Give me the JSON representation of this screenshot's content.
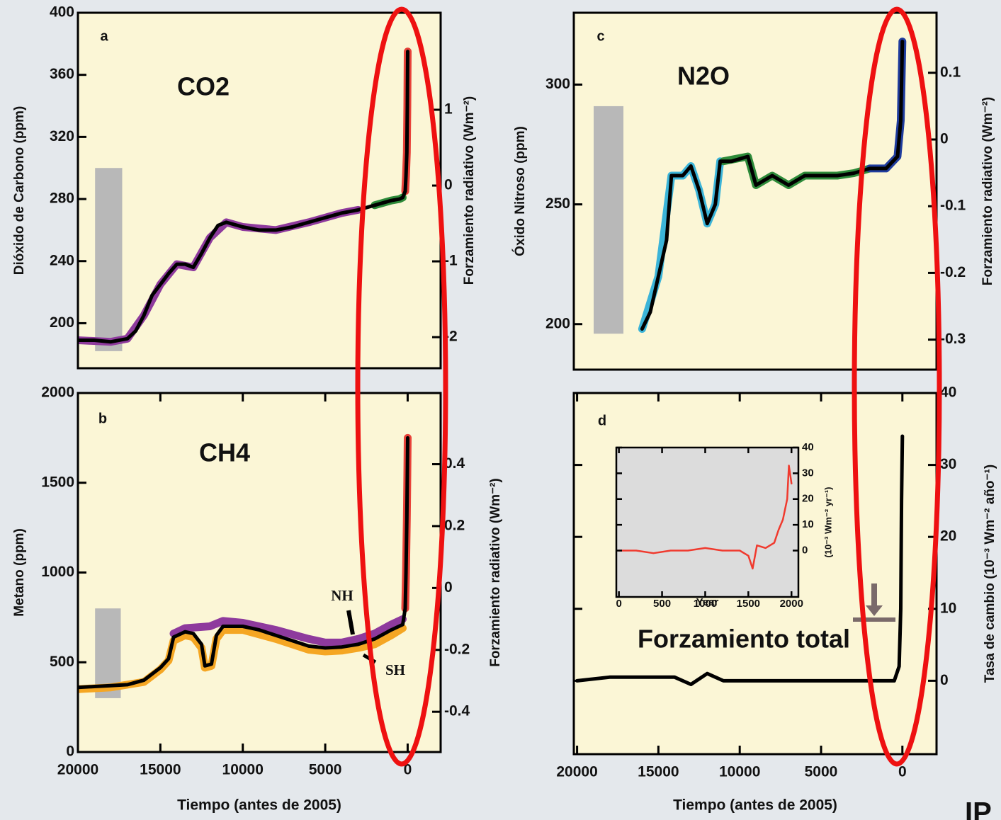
{
  "chart_data": [
    {
      "type": "line",
      "panel_label": "a",
      "title": "CO2",
      "ylabel": "Dióxido de Carbono (ppm)",
      "y2label": "Forzamiento radiativo (Wm⁻²)",
      "xlim": [
        20000,
        -2000
      ],
      "ylim": [
        171,
        400
      ],
      "yticks": [
        200,
        240,
        280,
        320,
        360,
        400
      ],
      "y2lim": [
        -2.41,
        2.28
      ],
      "y2ticks": [
        -2,
        -1,
        0,
        1
      ],
      "shaded_range": {
        "x": [
          18960,
          17315
        ],
        "y": [
          182,
          300
        ]
      },
      "series": [
        {
          "color": "#8e3a9d",
          "x": [
            20000,
            18000,
            17000,
            16000,
            15000,
            14000,
            13000,
            12000,
            11000,
            10000,
            8000,
            6000,
            4000,
            3000
          ],
          "values": [
            189,
            188,
            190,
            205,
            225,
            238,
            236,
            255,
            265,
            262,
            260,
            265,
            271,
            273
          ]
        },
        {
          "color": "#2e8b3a",
          "x": [
            2000,
            1000,
            500,
            300
          ],
          "values": [
            276,
            279,
            280,
            281
          ]
        },
        {
          "color": "#e8423a",
          "x": [
            150,
            100,
            50,
            20,
            0
          ],
          "values": [
            285,
            295,
            310,
            340,
            375
          ]
        },
        {
          "color": "#000000",
          "x": [
            20000,
            19000,
            18000,
            17000,
            16500,
            16000,
            15500,
            15000,
            14500,
            14000,
            13500,
            13000,
            12500,
            12000,
            11500,
            11000,
            10000,
            9000,
            8000,
            7000,
            6000,
            5000,
            4000,
            3000,
            2000,
            1000,
            500,
            300,
            150,
            100,
            50,
            20,
            0
          ],
          "values": [
            189,
            189,
            188,
            190,
            195,
            205,
            218,
            225,
            232,
            238,
            238,
            236,
            245,
            255,
            263,
            265,
            262,
            260,
            260,
            262,
            265,
            268,
            271,
            273,
            276,
            279,
            280,
            281,
            285,
            295,
            310,
            340,
            375
          ]
        }
      ]
    },
    {
      "type": "line",
      "panel_label": "b",
      "title": "CH4",
      "ylabel": "Metano (ppm)",
      "y2label": "Forzamiento radiativo (Wm⁻²)",
      "xlabel": "Tiempo (antes de 2005)",
      "xlim": [
        20000,
        -2000
      ],
      "xticks": [
        20000,
        15000,
        10000,
        5000,
        0
      ],
      "ylim": [
        0,
        2000
      ],
      "yticks": [
        0,
        500,
        1000,
        1500,
        2000
      ],
      "y2lim": [
        -0.53,
        0.63
      ],
      "y2ticks": [
        -0.4,
        -0.2,
        0,
        0.2,
        0.4
      ],
      "annotations": [
        "NH",
        "SH"
      ],
      "shaded_range": {
        "x": [
          18960,
          17400
        ],
        "y": [
          300,
          800
        ]
      },
      "series": [
        {
          "color": "#f5a623",
          "x": [
            20000,
            18000,
            16000,
            15000,
            14500,
            14200,
            13500,
            13000,
            12500,
            12300,
            11900,
            11600,
            11200,
            10000,
            8000,
            6000,
            5000,
            4000,
            3000,
            2000,
            1000,
            300
          ],
          "values": [
            350,
            360,
            390,
            460,
            510,
            620,
            650,
            640,
            580,
            470,
            480,
            630,
            680,
            680,
            630,
            570,
            560,
            565,
            580,
            600,
            650,
            690
          ]
        },
        {
          "color": "#8e3a9d",
          "x": [
            14200,
            13500,
            12000,
            11200,
            10000,
            8000,
            6000,
            5000,
            4000,
            3000,
            2000,
            1000,
            300
          ],
          "values": [
            660,
            690,
            700,
            730,
            720,
            680,
            630,
            610,
            610,
            630,
            660,
            710,
            740
          ]
        },
        {
          "color": "#e8423a",
          "x": [
            150,
            100,
            50,
            20,
            0
          ],
          "values": [
            800,
            1000,
            1300,
            1550,
            1750
          ]
        },
        {
          "color": "#000000",
          "x": [
            20000,
            19000,
            18000,
            17000,
            16000,
            15000,
            14500,
            14200,
            13500,
            13000,
            12500,
            12300,
            11900,
            11600,
            11200,
            10000,
            9000,
            8000,
            7000,
            6000,
            5000,
            4000,
            3000,
            2000,
            1000,
            300,
            150,
            100,
            50,
            20,
            0
          ],
          "values": [
            360,
            365,
            370,
            375,
            400,
            470,
            520,
            640,
            670,
            660,
            600,
            480,
            490,
            650,
            700,
            700,
            680,
            650,
            620,
            590,
            580,
            585,
            600,
            630,
            680,
            710,
            800,
            1000,
            1300,
            1550,
            1750
          ]
        }
      ]
    },
    {
      "type": "line",
      "panel_label": "c",
      "title": "N2O",
      "ylabel": "Óxido Nitroso (ppm)",
      "y2label": "Forzamiento radiativo (Wm⁻²)",
      "xlim": [
        20200,
        -2100
      ],
      "ylim": [
        181,
        330
      ],
      "yticks": [
        200,
        250,
        300
      ],
      "y2lim": [
        -0.345,
        0.19
      ],
      "y2ticks": [
        -0.3,
        -0.2,
        -0.1,
        0,
        0.1
      ],
      "shaded_range": {
        "x": [
          18980,
          17150
        ],
        "y": [
          196,
          291
        ]
      },
      "series": [
        {
          "color": "#3bb4d8",
          "x": [
            16000,
            15000,
            14200,
            13500,
            13000,
            12500,
            12000,
            11500,
            11200
          ],
          "values": [
            198,
            220,
            262,
            262,
            266,
            256,
            242,
            250,
            268
          ]
        },
        {
          "color": "#2e8b3a",
          "x": [
            11000,
            9500,
            9000,
            8000,
            7000,
            6000,
            5000,
            4000,
            3000,
            2000
          ],
          "values": [
            268,
            270,
            258,
            262,
            258,
            262,
            262,
            262,
            263,
            265
          ]
        },
        {
          "color": "#1f3c9e",
          "x": [
            2000,
            1000,
            300,
            100,
            0
          ],
          "values": [
            265,
            265,
            270,
            285,
            318
          ]
        },
        {
          "color": "#000000",
          "x": [
            16000,
            15500,
            15000,
            14500,
            14200,
            13500,
            13000,
            12500,
            12000,
            11500,
            11200,
            10500,
            9500,
            9000,
            8000,
            7000,
            6000,
            5000,
            4000,
            3000,
            2000,
            1000,
            300,
            100,
            0
          ],
          "values": [
            198,
            205,
            220,
            235,
            262,
            262,
            266,
            256,
            242,
            250,
            268,
            268,
            270,
            258,
            262,
            258,
            262,
            262,
            262,
            263,
            265,
            265,
            270,
            285,
            318
          ]
        }
      ]
    },
    {
      "type": "line",
      "panel_label": "d",
      "title": "Forzamiento total",
      "y2label": "Tasa de cambio (10⁻³ Wm⁻² año⁻¹)",
      "xlabel": "Tiempo (antes de 2005)",
      "xlim": [
        20200,
        -2100
      ],
      "xticks": [
        20000,
        15000,
        10000,
        5000,
        0
      ],
      "y2lim": [
        -10.2,
        40
      ],
      "y2ticks": [
        0,
        10,
        20,
        30,
        40
      ],
      "series": [
        {
          "color": "#000000",
          "axis": "y2",
          "x": [
            20000,
            18000,
            16000,
            14000,
            13000,
            12000,
            11000,
            9000,
            7000,
            5000,
            3000,
            1500,
            1000,
            500,
            200,
            100,
            50,
            0
          ],
          "values": [
            0,
            0.5,
            0.5,
            0.5,
            -0.5,
            1,
            0,
            0,
            0,
            0,
            0,
            0,
            0,
            0,
            2,
            10,
            25,
            34
          ]
        }
      ]
    },
    {
      "type": "line",
      "y2label": "(10⁻³ Wm⁻² yr⁻¹)",
      "xlabel": "Year",
      "xlim": [
        -30,
        2080
      ],
      "xticks": [
        0,
        500,
        1000,
        1500,
        2000
      ],
      "y2lim": [
        -18,
        40
      ],
      "y2ticks": [
        0,
        10,
        20,
        30,
        40
      ],
      "series": [
        {
          "color": "#f03a2e",
          "axis": "y2",
          "x": [
            0,
            200,
            400,
            600,
            800,
            1000,
            1200,
            1400,
            1500,
            1550,
            1600,
            1700,
            1800,
            1850,
            1900,
            1950,
            1970,
            2000
          ],
          "values": [
            0,
            0,
            -1,
            0,
            0,
            1,
            0,
            0,
            -2,
            -7,
            2,
            1,
            3,
            8,
            12,
            20,
            33,
            26
          ]
        }
      ]
    }
  ],
  "corner_text": "IP"
}
